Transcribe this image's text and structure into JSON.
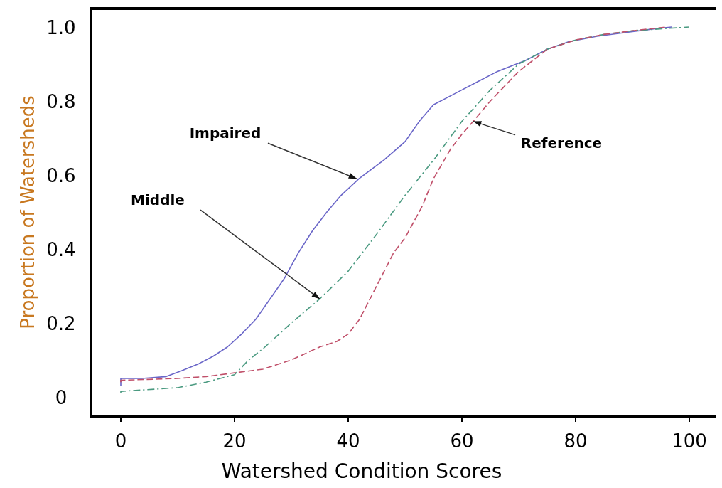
{
  "chart_data": {
    "type": "line",
    "xlabel": "Watershed Condition Scores",
    "ylabel": "Proportion of Watersheds",
    "xlim": [
      -5.25,
      105
    ],
    "ylim": [
      -0.052,
      1.05
    ],
    "xticks": [
      0,
      20,
      40,
      60,
      80,
      100
    ],
    "yticks": [
      0,
      {
        "value": 0.2,
        "label": "0.2"
      },
      {
        "value": 0.4,
        "label": "0.4"
      },
      {
        "value": 0.6,
        "label": "0.6"
      },
      {
        "value": 0.8,
        "label": "0.8"
      },
      {
        "value": 1,
        "label": "1.0"
      }
    ],
    "grid": false,
    "series": [
      {
        "color": "#6a66c8",
        "line_style": "solid",
        "x": [
          0,
          0,
          3.75,
          8,
          10.6,
          13.75,
          16.25,
          18.75,
          21.25,
          23.75,
          26.25,
          28.75,
          31.25,
          33.75,
          36.25,
          38.75,
          41.9,
          46.25,
          50,
          52.5,
          55,
          58.75,
          62.5,
          66.25,
          71.25,
          75,
          78.75,
          83.75,
          88.75,
          93.75,
          96.9
        ],
        "values": [
          0.03,
          0.05,
          0.05,
          0.055,
          0.07,
          0.09,
          0.11,
          0.135,
          0.17,
          0.21,
          0.265,
          0.32,
          0.39,
          0.45,
          0.5,
          0.545,
          0.59,
          0.64,
          0.69,
          0.745,
          0.79,
          0.82,
          0.85,
          0.88,
          0.91,
          0.94,
          0.96,
          0.975,
          0.985,
          0.995,
          1.0
        ]
      },
      {
        "color": "#4a9a80",
        "line_style": "dashed",
        "x": [
          0,
          0,
          10,
          15,
          20,
          22.5,
          25,
          30,
          35,
          40,
          45,
          50,
          55,
          60,
          65,
          70,
          75,
          80,
          85,
          90,
          100
        ],
        "values": [
          0.01,
          0.015,
          0.025,
          0.04,
          0.06,
          0.1,
          0.13,
          0.2,
          0.265,
          0.34,
          0.44,
          0.545,
          0.64,
          0.745,
          0.83,
          0.9,
          0.94,
          0.965,
          0.98,
          0.99,
          1.0
        ]
      },
      {
        "color": "#c0506a",
        "line_style": "dashed",
        "x": [
          0,
          0,
          10,
          15,
          20,
          25,
          30,
          35,
          38,
          40,
          42,
          45,
          48,
          50,
          53,
          55,
          58,
          60,
          62,
          65,
          70,
          75,
          80,
          85,
          90,
          96
        ],
        "values": [
          0.04,
          0.045,
          0.05,
          0.055,
          0.065,
          0.075,
          0.1,
          0.135,
          0.15,
          0.17,
          0.21,
          0.3,
          0.39,
          0.43,
          0.515,
          0.59,
          0.67,
          0.71,
          0.745,
          0.8,
          0.88,
          0.94,
          0.965,
          0.98,
          0.99,
          1.0
        ]
      }
    ],
    "annotations": [
      {
        "text": "Impaired",
        "x": 41.5,
        "y": 0.59
      },
      {
        "text": "Middle",
        "x": 35,
        "y": 0.265
      },
      {
        "text": "Reference",
        "x": 62,
        "y": 0.745
      }
    ]
  }
}
